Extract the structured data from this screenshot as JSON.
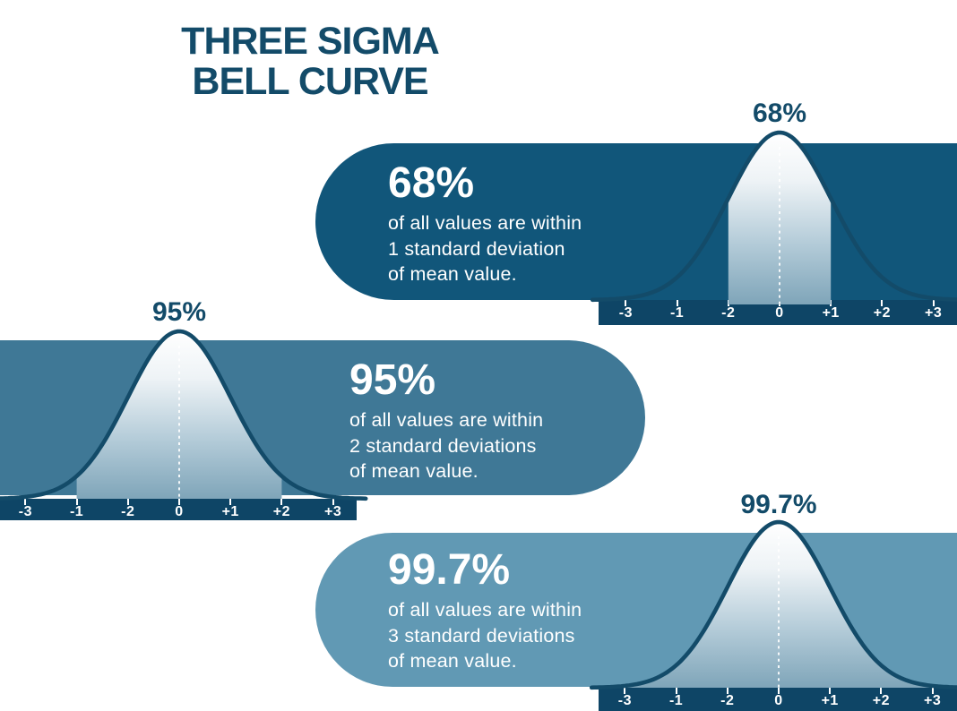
{
  "title": "THREE SIGMA\nBELL CURVE",
  "colors": {
    "navy": "#134B69",
    "panel1_bg": "#11567A",
    "panel2_bg": "#3F7896",
    "panel3_bg": "#6199B4",
    "axis_bg": "#0E4566",
    "curve_stroke": "#134B69",
    "shade_top": "#FFFFFF",
    "shade_bottom": "#7FA5B9",
    "tick_color": "#FFFFFF",
    "text_color": "#FFFFFF"
  },
  "panels": [
    {
      "peak_label": "68%",
      "headline": "68%",
      "body": "of all values are within\n1 standard deviation\nof mean value.",
      "ticks": [
        "-3",
        "-1",
        "-2",
        "0",
        "+1",
        "+2",
        "+3"
      ]
    },
    {
      "peak_label": "95%",
      "headline": "95%",
      "body": "of all values are within\n2 standard deviations\nof mean value.",
      "ticks": [
        "-3",
        "-1",
        "-2",
        "0",
        "+1",
        "+2",
        "+3"
      ]
    },
    {
      "peak_label": "99.7%",
      "headline": "99.7%",
      "body": "of all values are within\n3 standard deviations\nof mean value.",
      "ticks": [
        "-3",
        "-1",
        "-2",
        "0",
        "+1",
        "+2",
        "+3"
      ]
    }
  ],
  "chart_data": [
    {
      "type": "area",
      "subtype": "normal-distribution-coverage",
      "title": "68%",
      "annotation": "68% of all values are within 1 standard deviation of mean value.",
      "coverage_percent": 68,
      "std_dev_coverage": 1,
      "shaded_range_sigma": [
        -1,
        1
      ],
      "x_tick_labels_as_printed": [
        "-3",
        "-1",
        "-2",
        "0",
        "+1",
        "+2",
        "+3"
      ],
      "x_axis_note": "tick labels -1 and -2 appear swapped in the source graphic",
      "legend_position": "none",
      "grid": false
    },
    {
      "type": "area",
      "subtype": "normal-distribution-coverage",
      "title": "95%",
      "annotation": "95% of all values are within 2 standard deviations of mean value.",
      "coverage_percent": 95,
      "std_dev_coverage": 2,
      "shaded_range_sigma": [
        -2,
        2
      ],
      "x_tick_labels_as_printed": [
        "-3",
        "-1",
        "-2",
        "0",
        "+1",
        "+2",
        "+3"
      ],
      "x_axis_note": "tick labels -1 and -2 appear swapped in the source graphic",
      "legend_position": "none",
      "grid": false
    },
    {
      "type": "area",
      "subtype": "normal-distribution-coverage",
      "title": "99.7%",
      "annotation": "99.7% of all values are within 3 standard deviations of mean value.",
      "coverage_percent": 99.7,
      "std_dev_coverage": 3,
      "shaded_range_sigma": [
        -3,
        3
      ],
      "x_tick_labels_as_printed": [
        "-3",
        "-1",
        "-2",
        "0",
        "+1",
        "+2",
        "+3"
      ],
      "x_axis_note": "tick labels -1 and -2 appear swapped in the source graphic",
      "legend_position": "none",
      "grid": false
    }
  ]
}
